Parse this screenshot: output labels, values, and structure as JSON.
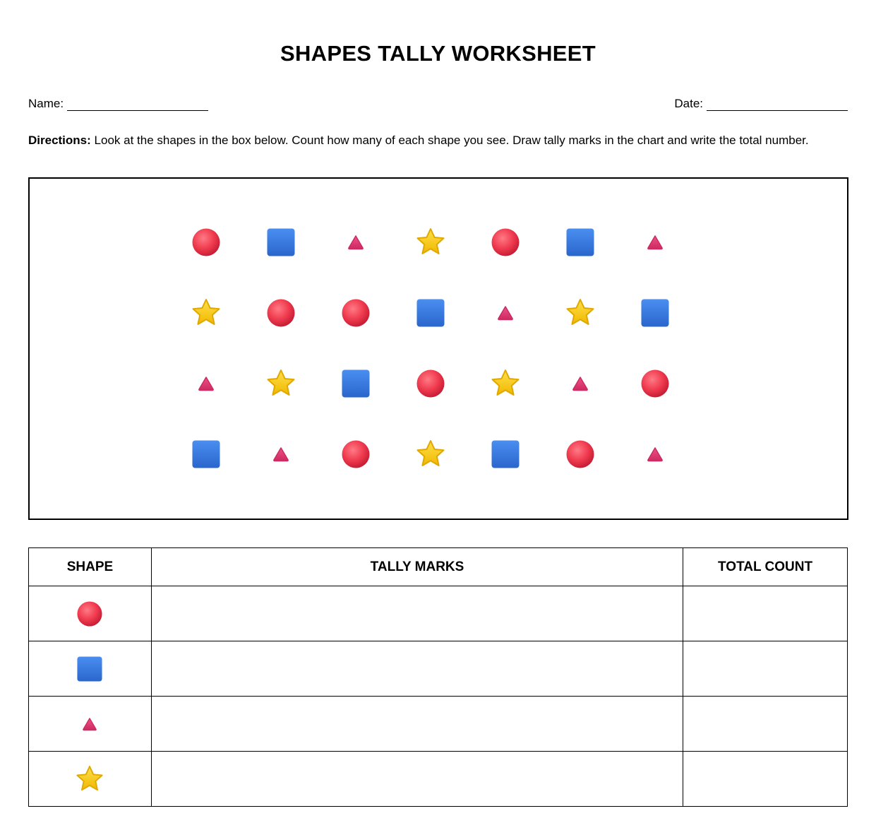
{
  "header": {
    "title": "SHAPES TALLY WORKSHEET",
    "name_label": "Name:",
    "date_label": "Date:"
  },
  "directions": {
    "label": "Directions:",
    "text": "Look at the shapes in the box below. Count how many of each shape you see. Draw tally marks in the chart and write the total number."
  },
  "table": {
    "headers": [
      "SHAPE",
      "TALLY MARKS",
      "TOTAL COUNT"
    ]
  }
}
